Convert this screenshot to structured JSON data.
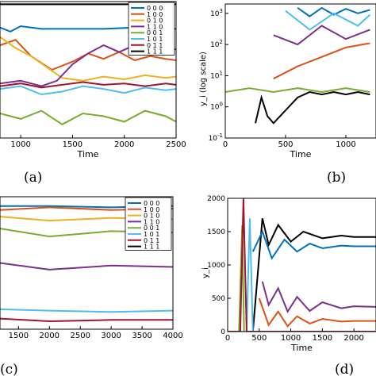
{
  "chart_data": [
    {
      "panel": "(a)",
      "type": "line",
      "xlabel": "Time",
      "xlim": [
        800,
        2500
      ],
      "ylim": [
        0,
        1
      ],
      "xticks": [
        "1000",
        "1500",
        "2000",
        "2500"
      ],
      "legend": {
        "placement": "top-right",
        "entries": [
          "0 0 0",
          "1 0 0",
          "0 1 0",
          "1 1 0",
          "0 0 1",
          "1 0 1",
          "0 1 1",
          "1 1 1"
        ]
      },
      "series": [
        {
          "name": "1 1 1",
          "color": "#000000",
          "x": [
            800,
            2500
          ],
          "y": [
            0.98,
            0.98
          ]
        },
        {
          "name": "0 0 0",
          "color": "#0072bd",
          "x": [
            800,
            900,
            1000,
            1200,
            1500,
            1800,
            2100,
            2300,
            2500
          ],
          "y": [
            0.81,
            0.78,
            0.82,
            0.8,
            0.8,
            0.8,
            0.81,
            0.8,
            0.8
          ]
        },
        {
          "name": "1 0 0",
          "color": "#d95319",
          "x": [
            800,
            950,
            1100,
            1300,
            1500,
            1650,
            1800,
            1950,
            2100,
            2250,
            2400,
            2500
          ],
          "y": [
            0.68,
            0.72,
            0.6,
            0.5,
            0.56,
            0.62,
            0.58,
            0.63,
            0.57,
            0.6,
            0.58,
            0.57
          ]
        },
        {
          "name": "0 1 0",
          "color": "#edb120",
          "x": [
            800,
            950,
            1100,
            1250,
            1400,
            1600,
            1800,
            2000,
            2200,
            2400,
            2500
          ],
          "y": [
            0.74,
            0.66,
            0.6,
            0.52,
            0.44,
            0.42,
            0.45,
            0.43,
            0.46,
            0.44,
            0.45
          ]
        },
        {
          "name": "1 1 0",
          "color": "#7e2f8e",
          "x": [
            800,
            1000,
            1200,
            1350,
            1500,
            1650,
            1800,
            1950,
            2100,
            2250,
            2400,
            2500
          ],
          "y": [
            0.4,
            0.42,
            0.38,
            0.42,
            0.54,
            0.62,
            0.68,
            0.63,
            0.68,
            0.64,
            0.66,
            0.65
          ]
        },
        {
          "name": "0 0 1",
          "color": "#77ac30",
          "x": [
            800,
            1000,
            1200,
            1400,
            1600,
            1800,
            2000,
            2200,
            2400,
            2500
          ],
          "y": [
            0.18,
            0.14,
            0.2,
            0.1,
            0.18,
            0.16,
            0.12,
            0.2,
            0.16,
            0.12
          ]
        },
        {
          "name": "1 0 1",
          "color": "#4dbeee",
          "x": [
            800,
            1000,
            1200,
            1400,
            1600,
            1800,
            2000,
            2200,
            2400,
            2500
          ],
          "y": [
            0.36,
            0.38,
            0.32,
            0.34,
            0.38,
            0.36,
            0.33,
            0.37,
            0.35,
            0.36
          ]
        },
        {
          "name": "0 1 1",
          "color": "#a2142f",
          "x": [
            800,
            1000,
            1200,
            1400,
            1600,
            1800,
            2000,
            2200,
            2400,
            2500
          ],
          "y": [
            0.38,
            0.4,
            0.37,
            0.39,
            0.41,
            0.39,
            0.4,
            0.38,
            0.4,
            0.39
          ]
        }
      ]
    },
    {
      "panel": "(b)",
      "type": "line",
      "xlabel": "Time",
      "ylabel": "y_i (log scale)",
      "yscale": "log",
      "xlim": [
        0,
        1250
      ],
      "ylim": [
        0.1,
        2000
      ],
      "xticks": [
        "0",
        "500",
        "1000"
      ],
      "yticks": [
        "10^-1",
        "10^0",
        "10^1",
        "10^2",
        "10^3"
      ],
      "series": [
        {
          "name": "1 1 1",
          "color": "#000000",
          "x": [
            250,
            300,
            350,
            400,
            600,
            700,
            800,
            900,
            1000,
            1100,
            1200
          ],
          "y": [
            0.3,
            2,
            0.5,
            0.3,
            2,
            3,
            2.5,
            3,
            2.5,
            3,
            2.5
          ]
        },
        {
          "name": "0 0 0",
          "color": "#0072bd",
          "x": [
            600,
            700,
            800,
            900,
            1000,
            1100,
            1200
          ],
          "y": [
            1500,
            800,
            1500,
            900,
            1400,
            1000,
            1300
          ]
        },
        {
          "name": "1 0 0",
          "color": "#d95319",
          "x": [
            400,
            600,
            800,
            1000,
            1200
          ],
          "y": [
            8,
            20,
            40,
            80,
            110
          ]
        },
        {
          "name": "1 1 0",
          "color": "#7e2f8e",
          "x": [
            400,
            600,
            800,
            1000,
            1200
          ],
          "y": [
            200,
            100,
            400,
            150,
            300
          ]
        },
        {
          "name": "0 0 1",
          "color": "#77ac30",
          "x": [
            0,
            200,
            400,
            600,
            800,
            1000,
            1200
          ],
          "y": [
            3,
            4,
            3,
            4,
            3,
            4,
            3
          ]
        },
        {
          "name": "1 0 1",
          "color": "#4dbeee",
          "x": [
            500,
            700,
            900,
            1100,
            1200
          ],
          "y": [
            1200,
            300,
            1000,
            400,
            900
          ]
        }
      ]
    },
    {
      "panel": "(c)",
      "type": "line",
      "xlim": [
        1200,
        4000
      ],
      "xticks": [
        "1500",
        "2000",
        "2500",
        "3000",
        "3500",
        "4000"
      ],
      "legend": {
        "placement": "top-right",
        "entries": [
          "0 0 0",
          "1 0 0",
          "0 1 0",
          "1 1 0",
          "0 0 1",
          "1 0 1",
          "0 1 1",
          "1 1 1"
        ]
      },
      "series": [
        {
          "name": "0 0 0",
          "color": "#0072bd",
          "x": [
            1200,
            2000,
            3000,
            4000
          ],
          "y": [
            0.93,
            0.93,
            0.92,
            0.93
          ]
        },
        {
          "name": "1 0 0",
          "color": "#d95319",
          "x": [
            1200,
            2000,
            3000,
            4000
          ],
          "y": [
            0.9,
            0.92,
            0.9,
            0.91
          ]
        },
        {
          "name": "0 1 0",
          "color": "#edb120",
          "x": [
            1200,
            2000,
            3000,
            4000
          ],
          "y": [
            0.85,
            0.82,
            0.84,
            0.83
          ]
        },
        {
          "name": "0 0 1",
          "color": "#77ac30",
          "x": [
            1200,
            2000,
            3000,
            4000
          ],
          "y": [
            0.76,
            0.7,
            0.74,
            0.73
          ]
        },
        {
          "name": "1 1 0",
          "color": "#7e2f8e",
          "x": [
            1200,
            2000,
            3000,
            4000
          ],
          "y": [
            0.5,
            0.45,
            0.48,
            0.47
          ]
        },
        {
          "name": "1 0 1",
          "color": "#4dbeee",
          "x": [
            1200,
            2000,
            3000,
            4000
          ],
          "y": [
            0.15,
            0.14,
            0.13,
            0.14
          ]
        },
        {
          "name": "0 1 1",
          "color": "#a2142f",
          "x": [
            1200,
            2000,
            3000,
            4000
          ],
          "y": [
            0.08,
            0.06,
            0.07,
            0.07
          ]
        }
      ]
    },
    {
      "panel": "(d)",
      "type": "line",
      "xlabel": "Time",
      "ylabel": "y_i",
      "xlim": [
        0,
        2350
      ],
      "ylim": [
        0,
        2000
      ],
      "xticks": [
        "0",
        "500",
        "1000",
        "1500",
        "2000"
      ],
      "yticks": [
        "0",
        "500",
        "1000",
        "1500",
        "2000"
      ],
      "series": [
        {
          "name": "1 1 1",
          "color": "#000000",
          "x": [
            0,
            400,
            550,
            650,
            800,
            1000,
            1200,
            1500,
            1800,
            2000,
            2350
          ],
          "y": [
            0,
            0,
            1700,
            1300,
            1600,
            1350,
            1500,
            1400,
            1440,
            1420,
            1420
          ]
        },
        {
          "name": "0 0 0",
          "color": "#0072bd",
          "x": [
            400,
            550,
            700,
            900,
            1100,
            1300,
            1500,
            1800,
            2000,
            2350
          ],
          "y": [
            1200,
            1500,
            1100,
            1380,
            1200,
            1320,
            1250,
            1290,
            1280,
            1280
          ]
        },
        {
          "name": "1 1 0",
          "color": "#7e2f8e",
          "x": [
            550,
            650,
            800,
            950,
            1100,
            1300,
            1500,
            1800,
            2000,
            2350
          ],
          "y": [
            750,
            400,
            650,
            300,
            520,
            310,
            440,
            350,
            380,
            370
          ]
        },
        {
          "name": "1 0 0",
          "color": "#d95319",
          "x": [
            500,
            650,
            800,
            950,
            1100,
            1300,
            1500,
            1800,
            2000,
            2350
          ],
          "y": [
            500,
            100,
            300,
            80,
            230,
            120,
            190,
            150,
            160,
            160
          ]
        },
        {
          "name": "1 0 1",
          "color": "#4dbeee",
          "x": [
            0,
            300,
            350,
            400,
            2350
          ],
          "y": [
            0,
            0,
            1700,
            0,
            0
          ]
        },
        {
          "name": "0 0 1",
          "color": "#77ac30",
          "x": [
            0,
            180,
            230,
            260,
            2350
          ],
          "y": [
            0,
            0,
            1600,
            0,
            0
          ]
        },
        {
          "name": "0 1 1",
          "color": "#a2142f",
          "x": [
            0,
            200,
            250,
            300,
            2350
          ],
          "y": [
            0,
            0,
            2000,
            0,
            0
          ]
        }
      ]
    }
  ],
  "captions": [
    "(a)",
    "(b)",
    "(c)",
    "(d)"
  ]
}
